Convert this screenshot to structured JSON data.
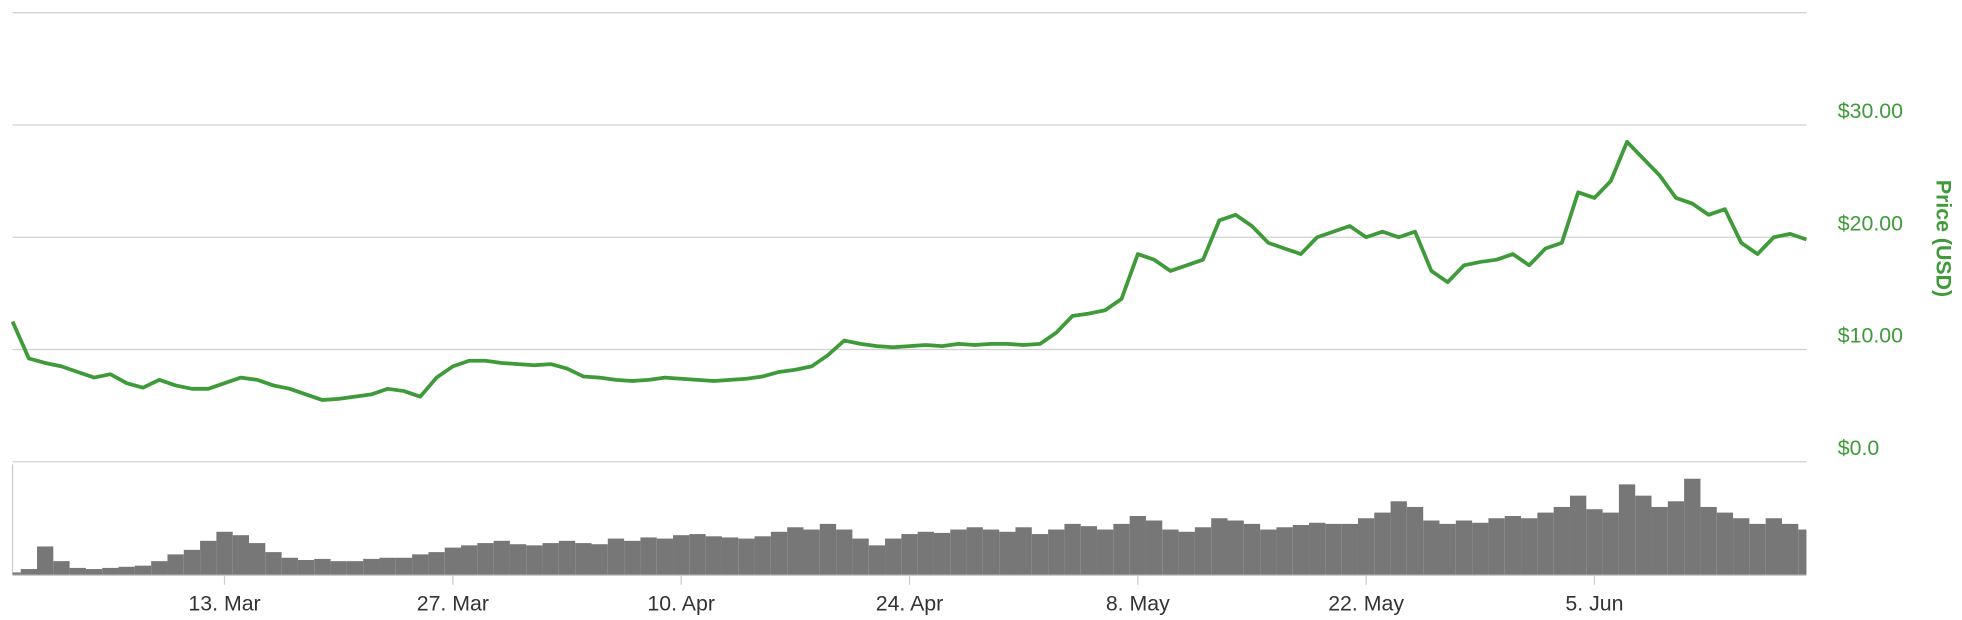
{
  "chart_data": [
    {
      "type": "line",
      "y_label": "Price (USD)",
      "color": "#3f9a3a",
      "categories": [
        null,
        null,
        null,
        null,
        null,
        null,
        null,
        null,
        null,
        null,
        null,
        null,
        null,
        "13. Mar",
        null,
        null,
        null,
        null,
        null,
        null,
        null,
        null,
        null,
        null,
        null,
        null,
        null,
        "27. Mar",
        null,
        null,
        null,
        null,
        null,
        null,
        null,
        null,
        null,
        null,
        null,
        null,
        null,
        "10. Apr",
        null,
        null,
        null,
        null,
        null,
        null,
        null,
        null,
        null,
        null,
        null,
        null,
        null,
        "24. Apr",
        null,
        null,
        null,
        null,
        null,
        null,
        null,
        null,
        null,
        null,
        null,
        null,
        null,
        "8. May",
        null,
        null,
        null,
        null,
        null,
        null,
        null,
        null,
        null,
        null,
        null,
        null,
        null,
        "22. May",
        null,
        null,
        null,
        null,
        null,
        null,
        null,
        null,
        null,
        null,
        null,
        null,
        null,
        "5. Jun",
        null,
        null,
        null,
        null,
        null,
        null,
        null,
        null,
        null,
        null,
        null,
        null,
        null
      ],
      "values": [
        12.5,
        9.2,
        8.8,
        8.5,
        8.0,
        7.5,
        7.8,
        7.0,
        6.6,
        7.3,
        6.8,
        6.5,
        6.5,
        7.0,
        7.5,
        7.3,
        6.8,
        6.5,
        6.0,
        5.5,
        5.6,
        5.8,
        6.0,
        6.5,
        6.3,
        5.8,
        7.5,
        8.5,
        9.0,
        9.0,
        8.8,
        8.7,
        8.6,
        8.7,
        8.3,
        7.6,
        7.5,
        7.3,
        7.2,
        7.3,
        7.5,
        7.4,
        7.3,
        7.2,
        7.3,
        7.4,
        7.6,
        8.0,
        8.2,
        8.5,
        9.5,
        10.8,
        10.5,
        10.3,
        10.2,
        10.3,
        10.4,
        10.3,
        10.5,
        10.4,
        10.5,
        10.5,
        10.4,
        10.5,
        11.5,
        13.0,
        13.2,
        13.5,
        14.5,
        18.5,
        18.0,
        17.0,
        17.5,
        18.0,
        21.5,
        22.0,
        21.0,
        19.5,
        19.0,
        18.5,
        20.0,
        20.5,
        21.0,
        20.0,
        20.5,
        20.0,
        20.5,
        17.0,
        16.0,
        17.5,
        17.8,
        18.0,
        18.5,
        17.5,
        19.0,
        19.5,
        24.0,
        23.5,
        25.0,
        28.5,
        27.0,
        25.5,
        23.5,
        23.0,
        22.0,
        22.5,
        19.5,
        18.5,
        20.0,
        20.3,
        19.8
      ],
      "ylim": [
        0,
        40
      ],
      "yticks": [
        {
          "value": 0,
          "label": "$0.0"
        },
        {
          "value": 10,
          "label": "$10.00"
        },
        {
          "value": 20,
          "label": "$20.00"
        },
        {
          "value": 30,
          "label": "$30.00"
        }
      ],
      "grid": true
    },
    {
      "type": "bar",
      "color": "#777777",
      "ylim": [
        0,
        100
      ],
      "values": [
        2,
        5,
        25,
        12,
        6,
        5,
        6,
        7,
        8,
        12,
        18,
        22,
        30,
        38,
        35,
        28,
        20,
        15,
        13,
        14,
        12,
        12,
        14,
        15,
        15,
        18,
        20,
        24,
        26,
        28,
        30,
        27,
        26,
        28,
        30,
        28,
        27,
        32,
        30,
        33,
        32,
        35,
        36,
        34,
        33,
        32,
        34,
        38,
        42,
        40,
        45,
        40,
        32,
        26,
        32,
        36,
        38,
        37,
        40,
        42,
        40,
        38,
        42,
        36,
        40,
        45,
        43,
        40,
        45,
        52,
        48,
        40,
        38,
        42,
        50,
        48,
        45,
        40,
        42,
        44,
        46,
        45,
        45,
        50,
        55,
        65,
        60,
        48,
        45,
        48,
        46,
        50,
        52,
        50,
        55,
        60,
        70,
        58,
        55,
        80,
        70,
        60,
        65,
        85,
        60,
        55,
        50,
        45,
        50,
        45,
        40
      ]
    }
  ]
}
